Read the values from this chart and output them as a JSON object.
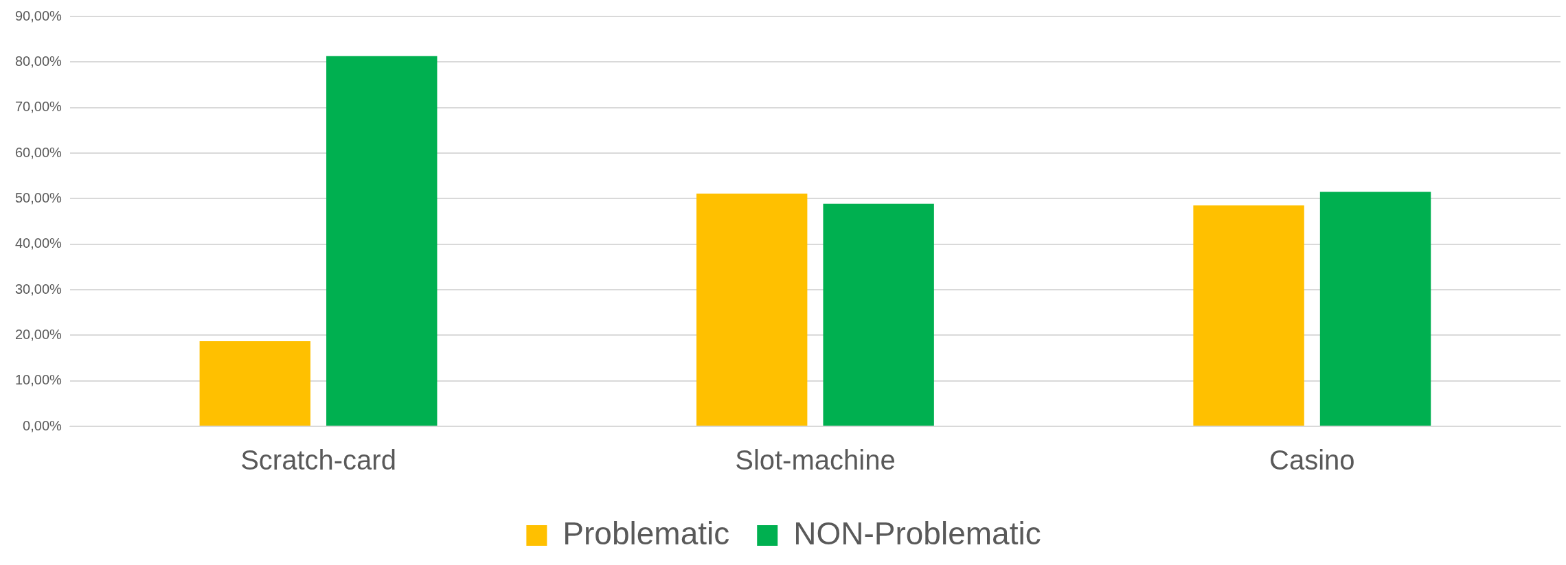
{
  "chart_data": {
    "type": "bar",
    "categories": [
      "Scratch-card",
      "Slot-machine",
      "Casino"
    ],
    "series": [
      {
        "name": "Problematic",
        "color": "#ffc000",
        "values": [
          18.7,
          51.1,
          48.5
        ]
      },
      {
        "name": "NON-Problematic",
        "color": "#00b050",
        "values": [
          81.3,
          48.9,
          51.5
        ]
      }
    ],
    "ylim": [
      0,
      90
    ],
    "yticks": [
      {
        "value": 0,
        "label": "0,00%"
      },
      {
        "value": 10,
        "label": "10,00%"
      },
      {
        "value": 20,
        "label": "20,00%"
      },
      {
        "value": 30,
        "label": "30,00%"
      },
      {
        "value": 40,
        "label": "40,00%"
      },
      {
        "value": 50,
        "label": "50,00%"
      },
      {
        "value": 60,
        "label": "60,00%"
      },
      {
        "value": 70,
        "label": "70,00%"
      },
      {
        "value": 80,
        "label": "80,00%"
      },
      {
        "value": 90,
        "label": "90,00%"
      }
    ],
    "grid": "y",
    "legend": "bottom"
  }
}
